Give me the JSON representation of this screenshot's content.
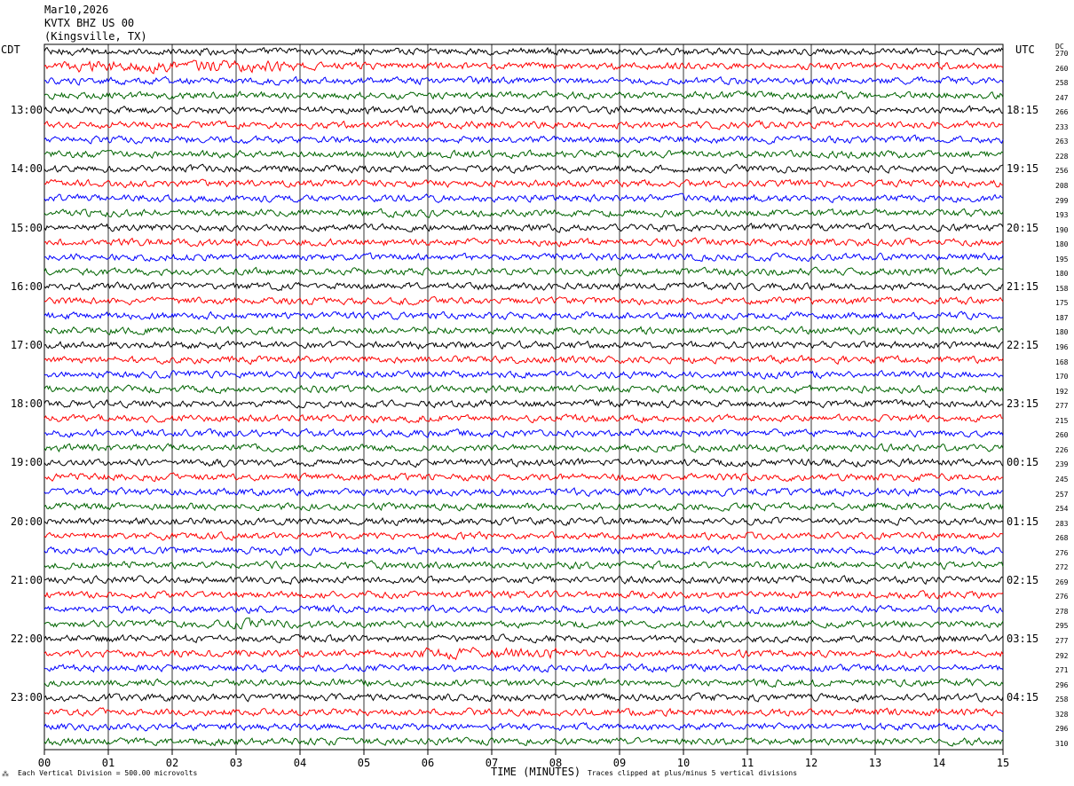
{
  "header": {
    "date": "Mar10,2026",
    "station": "KVTX BHZ US 00",
    "location": "(Kingsville, TX)"
  },
  "left_tz": "CDT",
  "right_tz": "UTC",
  "dc_label": "DC",
  "footer": {
    "scale": "Each Vertical Division =  500.00 microvolts",
    "xlabel": "TIME (MINUTES)",
    "clip_note": "Traces clipped at plus/minus 5 vertical divisions",
    "mark": "⁂"
  },
  "chart_data": {
    "type": "line",
    "title": "KVTX BHZ US 00",
    "xlabel": "TIME (MINUTES)",
    "x_ticks": [
      "00",
      "01",
      "02",
      "03",
      "04",
      "05",
      "06",
      "07",
      "08",
      "09",
      "10",
      "11",
      "12",
      "13",
      "14",
      "15"
    ],
    "xlim": [
      0,
      15
    ],
    "grid": true,
    "trace_colors": [
      "#000000",
      "#ff0000",
      "#0000ff",
      "#006400"
    ],
    "left_times": [
      "13:00",
      "14:00",
      "15:00",
      "16:00",
      "17:00",
      "18:00",
      "19:00",
      "20:00",
      "21:00",
      "22:00",
      "23:00"
    ],
    "right_times": [
      "18:15",
      "19:15",
      "20:15",
      "21:15",
      "22:15",
      "23:15",
      "00:15",
      "01:15",
      "02:15",
      "03:15",
      "04:15"
    ],
    "dc_offsets": [
      270,
      260,
      258,
      247,
      266,
      233,
      263,
      228,
      256,
      208,
      299,
      193,
      190,
      180,
      195,
      180,
      158,
      175,
      187,
      180,
      196,
      168,
      170,
      192,
      277,
      215,
      260,
      226,
      239,
      245,
      257,
      254,
      283,
      268,
      276,
      272,
      269,
      276,
      278,
      295,
      277,
      292,
      271,
      296,
      258,
      328,
      296,
      310
    ]
  }
}
